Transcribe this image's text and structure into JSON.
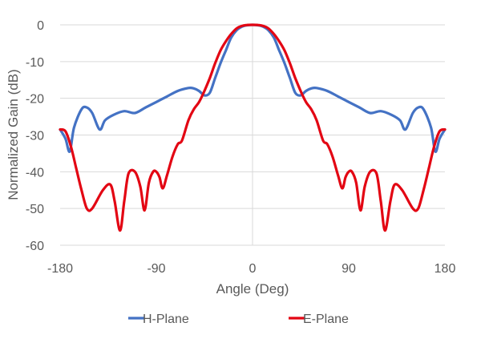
{
  "chart_data": {
    "type": "line",
    "title": "",
    "xlabel": "Angle (Deg)",
    "ylabel": "Normalized Gain (dB)",
    "xlim": [
      -180,
      180
    ],
    "ylim": [
      -60,
      0
    ],
    "xticks": [
      "-180",
      "-90",
      "0",
      "90",
      "180"
    ],
    "yticks": [
      "0",
      "-10",
      "-20",
      "-30",
      "-40",
      "-50",
      "-60"
    ],
    "grid": "horizontal",
    "legend": "bottom",
    "series": [
      {
        "name": "H-Plane",
        "color": "#4472C4",
        "x": [
          -180,
          -175,
          -171,
          -167,
          -160,
          -155,
          -150,
          -143,
          -138,
          -130,
          -120,
          -110,
          -100,
          -90,
          -80,
          -70,
          -60,
          -55,
          -50,
          -45,
          -40,
          -35,
          -30,
          -25,
          -20,
          -15,
          -10,
          -5,
          0,
          5,
          10,
          15,
          20,
          25,
          30,
          35,
          40,
          45,
          50,
          55,
          60,
          70,
          80,
          90,
          100,
          110,
          120,
          130,
          138,
          143,
          150,
          155,
          160,
          167,
          171,
          175,
          180
        ],
        "y": [
          -28.5,
          -31,
          -34.5,
          -28,
          -23,
          -22.5,
          -24,
          -28.5,
          -26,
          -24.5,
          -23.5,
          -24,
          -22.5,
          -21,
          -19.5,
          -18,
          -17.2,
          -17.3,
          -18,
          -19.2,
          -18.5,
          -14.5,
          -10.5,
          -7,
          -3.5,
          -1.5,
          -0.5,
          -0.1,
          0,
          -0.1,
          -0.5,
          -1.5,
          -3.5,
          -7,
          -10.5,
          -14.5,
          -18.5,
          -19.2,
          -18,
          -17.3,
          -17.2,
          -18,
          -19.5,
          -21,
          -22.5,
          -24,
          -23.5,
          -24.5,
          -26,
          -28.5,
          -24,
          -22.5,
          -23,
          -28,
          -34.5,
          -31,
          -28.5
        ]
      },
      {
        "name": "E-Plane",
        "color": "#E30613",
        "x": [
          -180,
          -175,
          -170,
          -165,
          -160,
          -155,
          -150,
          -140,
          -133,
          -129,
          -124,
          -120,
          -116,
          -110,
          -105,
          -101,
          -97,
          -93,
          -90,
          -87,
          -84,
          -80,
          -75,
          -70,
          -66,
          -60,
          -55,
          -50,
          -45,
          -40,
          -35,
          -30,
          -25,
          -20,
          -15,
          -10,
          -5,
          0,
          5,
          10,
          15,
          20,
          25,
          30,
          35,
          40,
          45,
          50,
          55,
          60,
          66,
          70,
          75,
          80,
          84,
          87,
          90,
          93,
          97,
          101,
          105,
          110,
          116,
          120,
          124,
          129,
          133,
          140,
          150,
          155,
          160,
          165,
          170,
          175,
          180
        ],
        "y": [
          -28.5,
          -29,
          -33,
          -39,
          -45,
          -50,
          -50,
          -45,
          -43.5,
          -48,
          -56,
          -48,
          -40.5,
          -40,
          -44,
          -50.5,
          -43,
          -40,
          -40,
          -41.5,
          -44.5,
          -41,
          -36,
          -32.5,
          -31.5,
          -26,
          -23,
          -21,
          -18,
          -14.5,
          -10.5,
          -7,
          -4.5,
          -2.5,
          -1,
          -0.3,
          -0.05,
          0,
          -0.05,
          -0.3,
          -1,
          -2.5,
          -4.5,
          -7,
          -10.5,
          -14.5,
          -18,
          -21,
          -23,
          -26,
          -31.5,
          -32.5,
          -36,
          -41,
          -44.5,
          -41.5,
          -40,
          -40,
          -43,
          -50.5,
          -44,
          -40,
          -40.5,
          -48,
          -56,
          -48,
          -43.5,
          -45,
          -50,
          -50,
          -45,
          -39,
          -33,
          -29,
          -28.5
        ]
      }
    ]
  }
}
